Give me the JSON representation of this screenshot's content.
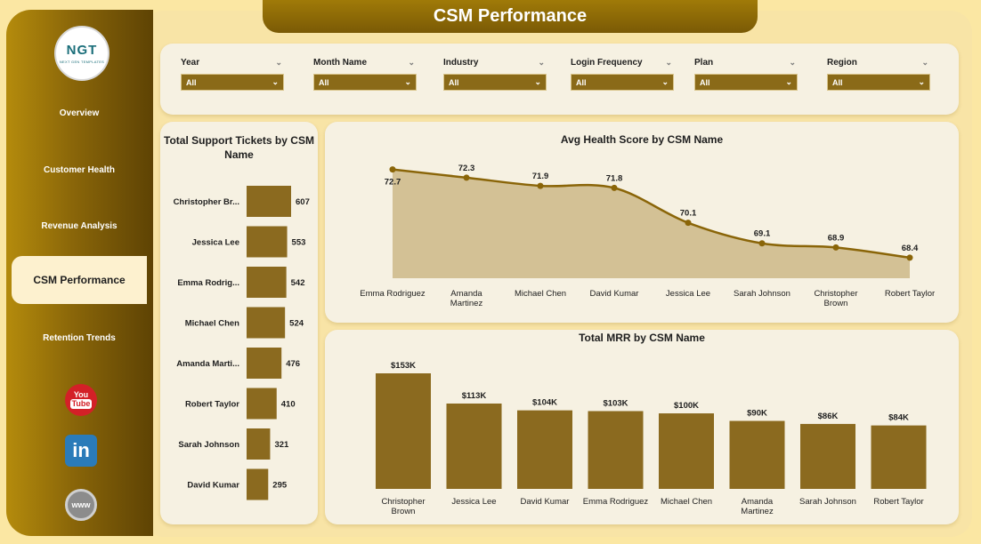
{
  "header": {
    "title": "CSM Performance"
  },
  "logo": {
    "text": "NGT",
    "tagline": "NEXT GEN TEMPLATES"
  },
  "sidebar": {
    "items": [
      {
        "label": "Overview",
        "active": false
      },
      {
        "label": "Customer Health",
        "active": false
      },
      {
        "label": "Revenue Analysis",
        "active": false
      },
      {
        "label": "CSM Performance",
        "active": true
      },
      {
        "label": "Retention Trends",
        "active": false
      }
    ],
    "social": [
      {
        "icon": "youtube-icon",
        "line1": "You",
        "line2": "Tube"
      },
      {
        "icon": "linkedin-icon",
        "text": "in"
      },
      {
        "icon": "website-icon",
        "text": "www"
      }
    ]
  },
  "filters": [
    {
      "label": "Year",
      "value": "All"
    },
    {
      "label": "Month Name",
      "value": "All"
    },
    {
      "label": "Industry",
      "value": "All"
    },
    {
      "label": "Login Frequency",
      "value": "All"
    },
    {
      "label": "Plan",
      "value": "All"
    },
    {
      "label": "Region",
      "value": "All"
    }
  ],
  "colors": {
    "accent": "#8a6a18",
    "bar": "#8b6a1f",
    "line": "#8a6508",
    "area": "#cdb887",
    "sidebar_dark": "#5e4304",
    "card": "#f6f1e2"
  },
  "chart_data": [
    {
      "type": "bar",
      "orientation": "horizontal",
      "title": "Total Support Tickets by CSM Name",
      "categories": [
        "Christopher Br...",
        "Jessica Lee",
        "Emma Rodrig...",
        "Michael Chen",
        "Amanda Marti...",
        "Robert Taylor",
        "Sarah Johnson",
        "David Kumar"
      ],
      "values": [
        607,
        553,
        542,
        524,
        476,
        410,
        321,
        295
      ],
      "data_labels": [
        "607",
        "553",
        "542",
        "524",
        "476",
        "410",
        "321",
        "295"
      ]
    },
    {
      "type": "area",
      "title": "Avg Health Score by CSM Name",
      "categories": [
        "Emma Rodriguez",
        "Amanda Martinez",
        "Michael Chen",
        "David Kumar",
        "Jessica Lee",
        "Sarah Johnson",
        "Christopher Brown",
        "Robert Taylor"
      ],
      "values": [
        72.7,
        72.3,
        71.9,
        71.8,
        70.1,
        69.1,
        68.9,
        68.4
      ],
      "data_labels": [
        "72.7",
        "72.3",
        "71.9",
        "71.8",
        "70.1",
        "69.1",
        "68.9",
        "68.4"
      ]
    },
    {
      "type": "bar",
      "orientation": "vertical",
      "title": "Total MRR by CSM Name",
      "categories": [
        "Christopher Brown",
        "Jessica Lee",
        "David Kumar",
        "Emma Rodriguez",
        "Michael Chen",
        "Amanda Martinez",
        "Sarah Johnson",
        "Robert Taylor"
      ],
      "values": [
        153000,
        113000,
        104000,
        103000,
        100000,
        90000,
        86000,
        84000
      ],
      "data_labels": [
        "$153K",
        "$113K",
        "$104K",
        "$103K",
        "$100K",
        "$90K",
        "$86K",
        "$84K"
      ]
    }
  ]
}
